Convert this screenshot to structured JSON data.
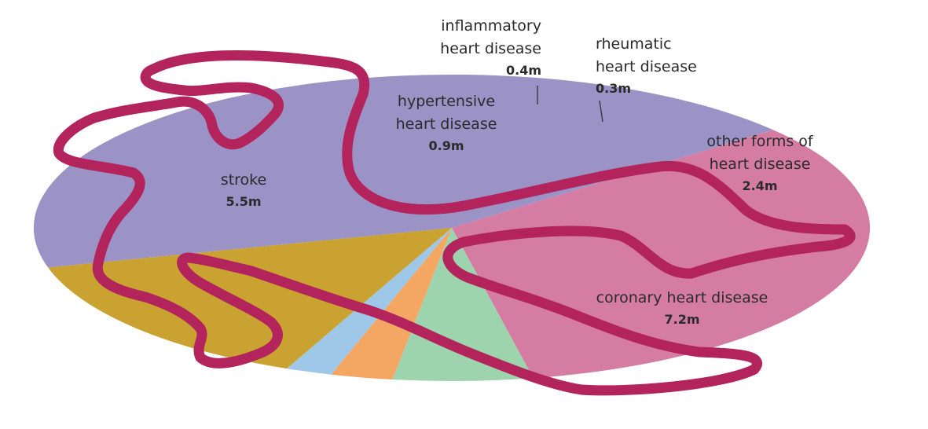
{
  "chart_data": {
    "type": "pie",
    "title": "",
    "unit": "m",
    "slices": [
      {
        "label_lines": [
          "coronary heart disease"
        ],
        "value": 7.2,
        "value_label": "7.2m",
        "color": "#9b92c6"
      },
      {
        "label_lines": [
          "stroke"
        ],
        "value": 5.5,
        "value_label": "5.5m",
        "color": "#d47ca2"
      },
      {
        "label_lines": [
          "hypertensive",
          "heart disease"
        ],
        "value": 0.9,
        "value_label": "0.9m",
        "color": "#9dd3ad"
      },
      {
        "label_lines": [
          "inflammatory",
          "heart disease"
        ],
        "value": 0.4,
        "value_label": "0.4m",
        "color": "#f3a762"
      },
      {
        "label_lines": [
          "rheumatic",
          "heart disease"
        ],
        "value": 0.3,
        "value_label": "0.3m",
        "color": "#9fc7e7"
      },
      {
        "label_lines": [
          "other forms of",
          "heart disease"
        ],
        "value": 2.4,
        "value_label": "2.4m",
        "color": "#c9a232"
      }
    ],
    "decoration": {
      "heart_outline_color": "#b2245b"
    }
  }
}
